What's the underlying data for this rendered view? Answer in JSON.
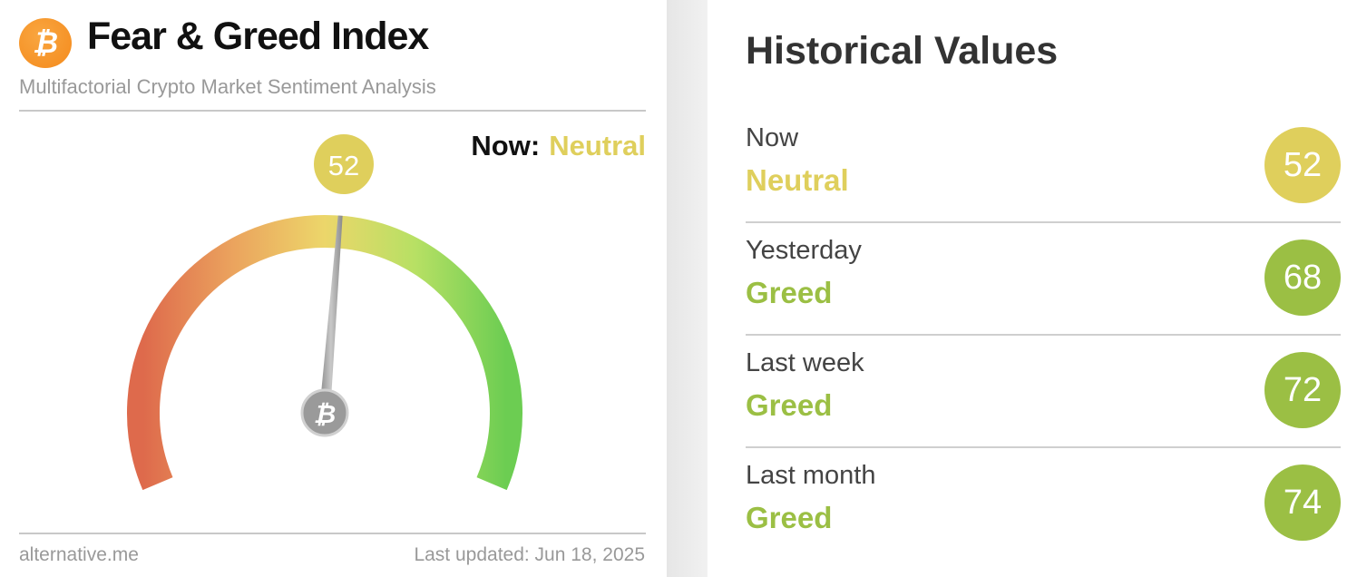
{
  "header": {
    "logo_icon": "bitcoin-icon",
    "title": "Fear & Greed Index",
    "subtitle": "Multifactorial Crypto Market Sentiment Analysis"
  },
  "gauge": {
    "value": 52,
    "value_label": "52",
    "now_label": "Now:",
    "now_classification": "Neutral",
    "min": 0,
    "max": 100,
    "needle_pivot_icon": "bitcoin-icon",
    "color_neutral": "#dfcf5c"
  },
  "footer": {
    "source": "alternative.me",
    "last_updated": "Last updated: Jun 18, 2025"
  },
  "historical": {
    "title": "Historical Values",
    "rows": [
      {
        "label": "Now",
        "classification": "Neutral",
        "value": "52",
        "color": "#dfcf5c"
      },
      {
        "label": "Yesterday",
        "classification": "Greed",
        "value": "68",
        "color": "#9bbf44"
      },
      {
        "label": "Last week",
        "classification": "Greed",
        "value": "72",
        "color": "#9bbf44"
      },
      {
        "label": "Last month",
        "classification": "Greed",
        "value": "74",
        "color": "#9bbf44"
      }
    ]
  }
}
